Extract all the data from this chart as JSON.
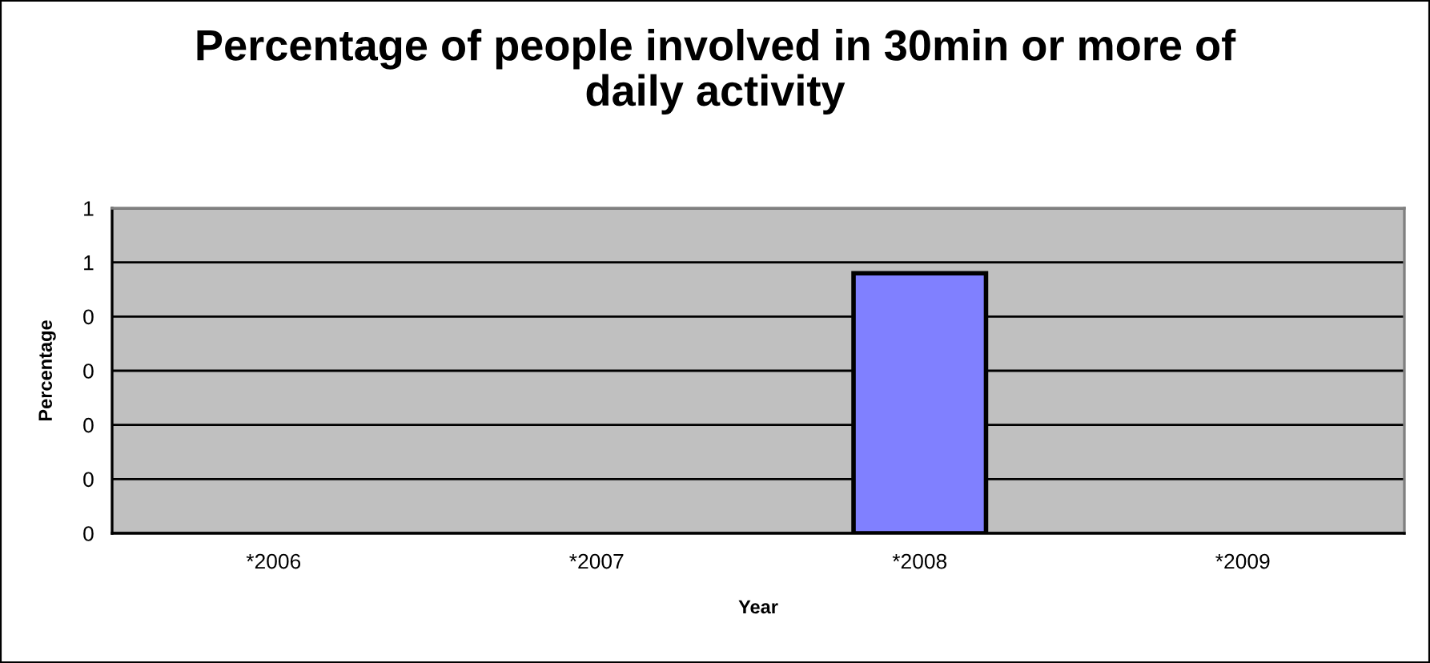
{
  "chart_data": {
    "type": "bar",
    "title": "Percentage of people involved in 30min or more of daily activity",
    "xlabel": "Year",
    "ylabel": "Percentage",
    "categories": [
      "*2006",
      "*2007",
      "*2008",
      "*2009"
    ],
    "series": [
      {
        "color": "#8080ff",
        "values": [
          null,
          null,
          0.48,
          null
        ]
      }
    ],
    "ylim": [
      0,
      0.6
    ],
    "yticks": [
      {
        "value": 0,
        "label": "0"
      },
      {
        "value": 0.1,
        "label": "0"
      },
      {
        "value": 0.2,
        "label": "0"
      },
      {
        "value": 0.3,
        "label": "0"
      },
      {
        "value": 0.4,
        "label": "0"
      },
      {
        "value": 0.5,
        "label": "1"
      },
      {
        "value": 0.6,
        "label": "1"
      }
    ],
    "grid": "y"
  }
}
